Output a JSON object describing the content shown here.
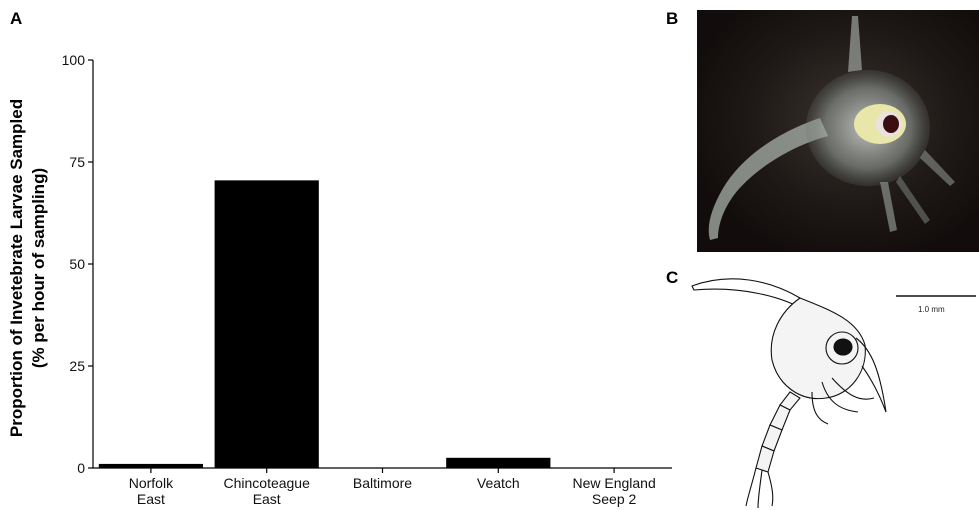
{
  "panels": {
    "a": "A",
    "b": "B",
    "c": "C"
  },
  "scale_bar_label": "1.0 mm",
  "chart_data": {
    "type": "bar",
    "categories": [
      "Norfolk\nEast",
      "Chincoteague\nEast",
      "Baltimore",
      "Veatch",
      "New England\nSeep 2"
    ],
    "values": [
      1.0,
      70.5,
      0,
      2.5,
      0
    ],
    "title": "",
    "xlabel": "",
    "ylabel": "Proportion of Invetebrate Larvae Sampled",
    "ylabel2": "(% per hour of sampling)",
    "ylim": [
      0,
      100
    ],
    "yticks": [
      0,
      25,
      50,
      75,
      100
    ],
    "grid": false,
    "legend": "none",
    "bar_color": "#000000"
  },
  "colors": {
    "photo_bg": "#1a1412",
    "bar": "#000000",
    "axis": "#000000"
  }
}
